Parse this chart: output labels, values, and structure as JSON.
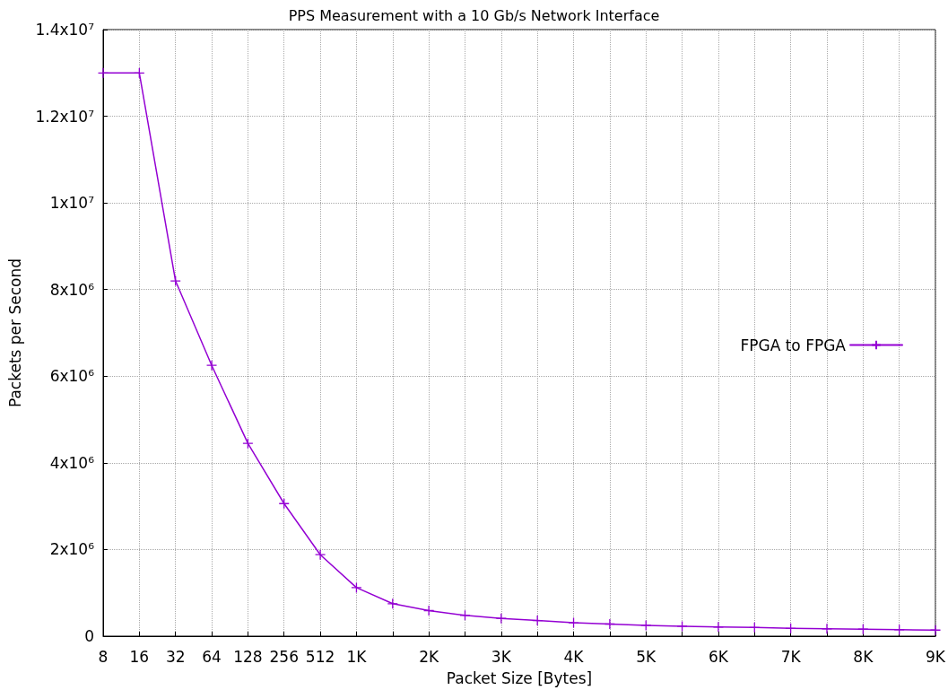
{
  "chart_data": {
    "type": "line",
    "title": "PPS Measurement with a 10 Gb/s Network Interface",
    "xlabel": "Packet Size [Bytes]",
    "ylabel": "Packets per Second",
    "categories": [
      "8",
      "16",
      "32",
      "64",
      "128",
      "256",
      "512",
      "1K",
      null,
      "2K",
      null,
      "3K",
      null,
      "4K",
      null,
      "5K",
      null,
      "6K",
      null,
      "7K",
      null,
      "8K",
      null,
      "9K"
    ],
    "series": [
      {
        "name": "FPGA to FPGA",
        "color": "#9400d3",
        "values": [
          13000000,
          13000000,
          8200000,
          6250000,
          4450000,
          3060000,
          1880000,
          1120000,
          750000,
          590000,
          480000,
          410000,
          360000,
          310000,
          280000,
          250000,
          230000,
          210000,
          200000,
          180000,
          170000,
          160000,
          150000,
          140000
        ]
      }
    ],
    "ylim": [
      0,
      14000000
    ],
    "yticks": [
      0,
      {
        "value": 2000000,
        "label": "2x10⁶"
      },
      {
        "value": 4000000,
        "label": "4x10⁶"
      },
      {
        "value": 6000000,
        "label": "6x10⁶"
      },
      {
        "value": 8000000,
        "label": "8x10⁶"
      },
      {
        "value": 10000000,
        "label": "1x10⁷"
      },
      {
        "value": 12000000,
        "label": "1.2x10⁷"
      },
      {
        "value": 14000000,
        "label": "1.4x10⁷"
      }
    ],
    "grid": true,
    "legend": "right",
    "marker": "cross",
    "line_style": "solid"
  }
}
